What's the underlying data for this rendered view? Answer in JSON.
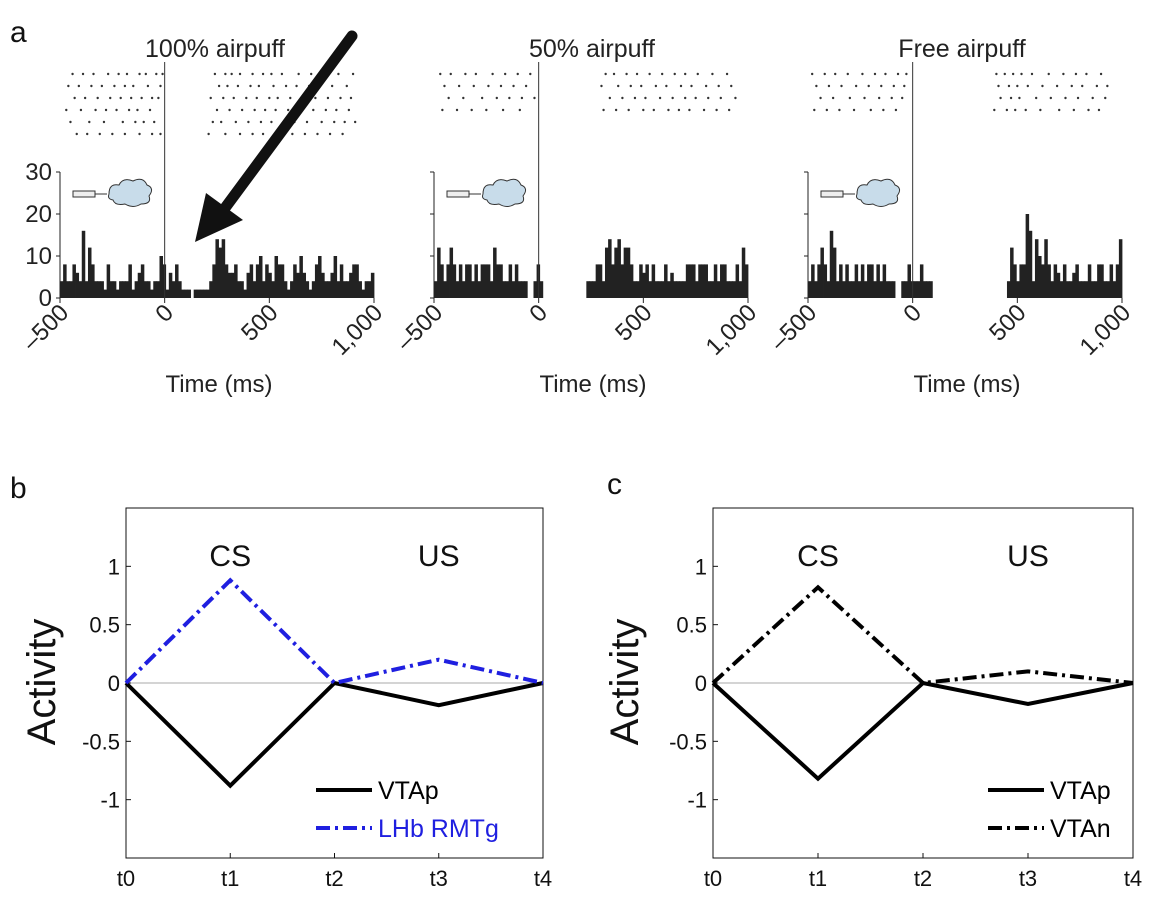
{
  "panel_labels": [
    "a",
    "b",
    "c"
  ],
  "panel_a": {
    "xlabel": "Time (ms)",
    "xticks": [
      "–500",
      "0",
      "500",
      "1,000"
    ],
    "xtick_values": [
      -500,
      0,
      500,
      1000
    ],
    "yticks": [
      "0",
      "10",
      "20",
      "30"
    ],
    "ytick_values": [
      0,
      10,
      20,
      30
    ],
    "xlim": [
      -500,
      1000
    ],
    "ylim": [
      0,
      30
    ],
    "icon": "airpuff-icon",
    "annotation_icon": "arrow-icon"
  },
  "chart_data": [
    {
      "type": "bar",
      "title": "100% airpuff",
      "bin_ms": 20,
      "x_start": -500,
      "values": [
        4,
        8,
        4,
        4,
        8,
        6,
        4,
        16,
        4,
        12,
        8,
        4,
        4,
        4,
        2,
        8,
        4,
        4,
        2,
        4,
        4,
        4,
        8,
        2,
        4,
        6,
        8,
        4,
        4,
        2,
        4,
        4,
        10,
        8,
        2,
        6,
        4,
        8,
        4,
        2,
        2,
        2,
        0,
        2,
        2,
        2,
        2,
        2,
        4,
        8,
        14,
        12,
        14,
        8,
        6,
        6,
        8,
        4,
        4,
        2,
        6,
        8,
        4,
        8,
        10,
        4,
        8,
        6,
        4,
        10,
        8,
        8,
        4,
        2,
        4,
        8,
        6,
        10,
        6,
        4,
        2,
        4,
        8,
        10,
        6,
        4,
        4,
        6,
        10,
        4,
        8,
        4,
        4,
        6,
        8,
        8,
        4,
        2,
        4,
        4,
        6
      ],
      "raster_rows": [
        [
          -440,
          -390,
          -340,
          -270,
          -220,
          -180,
          -120,
          -90,
          -40,
          -10,
          240,
          290,
          320,
          360,
          420,
          470,
          510,
          560,
          640,
          700,
          760,
          830,
          900
        ],
        [
          -460,
          -410,
          -350,
          -300,
          -240,
          -190,
          -150,
          -80,
          -20,
          260,
          300,
          350,
          410,
          450,
          520,
          580,
          630,
          690,
          740,
          800,
          870
        ],
        [
          -430,
          -380,
          -320,
          -260,
          -210,
          -160,
          -110,
          -60,
          -30,
          220,
          280,
          330,
          390,
          440,
          500,
          540,
          600,
          660,
          720,
          780,
          840,
          890
        ],
        [
          -470,
          -400,
          -330,
          -280,
          -230,
          -170,
          -130,
          -70,
          250,
          310,
          370,
          430,
          480,
          530,
          590,
          650,
          710,
          770,
          820,
          880
        ],
        [
          -450,
          -360,
          -290,
          -200,
          -140,
          -100,
          -50,
          230,
          270,
          340,
          400,
          460,
          510,
          570,
          620,
          680,
          750,
          810,
          860,
          910
        ],
        [
          -420,
          -370,
          -310,
          -250,
          -190,
          -120,
          -60,
          -20,
          210,
          290,
          360,
          420,
          470,
          550,
          610,
          670,
          730,
          790,
          850
        ]
      ]
    },
    {
      "type": "bar",
      "title": "50% airpuff",
      "bin_ms": 20,
      "x_start": -500,
      "values": [
        4,
        12,
        8,
        4,
        8,
        12,
        8,
        4,
        8,
        4,
        8,
        8,
        4,
        8,
        4,
        8,
        8,
        8,
        4,
        12,
        8,
        8,
        4,
        4,
        8,
        4,
        8,
        4,
        4,
        4,
        0,
        0,
        4,
        8,
        4,
        0,
        0,
        0,
        0,
        0,
        0,
        0,
        0,
        0,
        0,
        0,
        0,
        0,
        0,
        4,
        4,
        4,
        8,
        8,
        4,
        12,
        14,
        8,
        12,
        14,
        8,
        12,
        12,
        8,
        4,
        4,
        8,
        6,
        8,
        4,
        8,
        4,
        4,
        4,
        8,
        4,
        6,
        4,
        4,
        4,
        4,
        8,
        8,
        8,
        4,
        8,
        8,
        8,
        4,
        4,
        8,
        4,
        8,
        8,
        4,
        4,
        4,
        8,
        4,
        12,
        8
      ],
      "raster_rows": [
        [
          -470,
          -420,
          -350,
          -300,
          -220,
          -160,
          -100,
          -40,
          320,
          360,
          420,
          470,
          530,
          590,
          650,
          700,
          760,
          830,
          900
        ],
        [
          -450,
          -380,
          -310,
          -240,
          -180,
          -120,
          -60,
          300,
          380,
          440,
          490,
          560,
          610,
          680,
          730,
          800,
          860,
          920
        ],
        [
          -430,
          -360,
          -270,
          -200,
          -140,
          -80,
          -20,
          340,
          400,
          460,
          510,
          580,
          640,
          700,
          750,
          810,
          870,
          940
        ],
        [
          -460,
          -390,
          -320,
          -250,
          -170,
          -90,
          310,
          370,
          430,
          500,
          550,
          620,
          670,
          720,
          790,
          850,
          910
        ]
      ]
    },
    {
      "type": "bar",
      "title": "Free airpuff",
      "bin_ms": 20,
      "x_start": -500,
      "values": [
        4,
        8,
        4,
        8,
        12,
        8,
        4,
        16,
        12,
        4,
        8,
        4,
        8,
        4,
        4,
        8,
        4,
        8,
        4,
        8,
        8,
        4,
        8,
        4,
        8,
        4,
        4,
        4,
        0,
        0,
        4,
        4,
        8,
        4,
        4,
        4,
        8,
        4,
        4,
        4,
        0,
        0,
        0,
        0,
        0,
        0,
        0,
        0,
        0,
        0,
        0,
        0,
        0,
        0,
        0,
        0,
        0,
        0,
        0,
        0,
        0,
        0,
        0,
        0,
        4,
        12,
        8,
        4,
        8,
        8,
        20,
        16,
        4,
        14,
        10,
        8,
        14,
        8,
        4,
        8,
        6,
        4,
        8,
        4,
        4,
        6,
        8,
        4,
        4,
        4,
        8,
        4,
        4,
        8,
        8,
        4,
        4,
        8,
        4,
        8,
        14
      ],
      "raster_rows": [
        [
          -480,
          -420,
          -370,
          -310,
          -240,
          -180,
          -130,
          -70,
          -30,
          400,
          440,
          480,
          520,
          570,
          650,
          720,
          780,
          830,
          900
        ],
        [
          -460,
          -400,
          -340,
          -270,
          -210,
          -150,
          -90,
          -40,
          410,
          460,
          500,
          550,
          620,
          690,
          760,
          810,
          880,
          930
        ],
        [
          -440,
          -380,
          -300,
          -230,
          -160,
          -100,
          -50,
          420,
          470,
          510,
          590,
          660,
          730,
          790,
          860,
          920
        ],
        [
          -470,
          -410,
          -350,
          -280,
          -200,
          -140,
          -80,
          390,
          450,
          490,
          540,
          610,
          700,
          770,
          840,
          890
        ]
      ]
    },
    {
      "type": "line",
      "categories": [
        "t0",
        "t1",
        "t2",
        "t3",
        "t4"
      ],
      "ylim": [
        -1.5,
        1.5
      ],
      "yticks": [
        "1",
        "0.5",
        "0",
        "-0.5",
        "-1"
      ],
      "ytick_values": [
        1,
        0.5,
        0,
        -0.5,
        -1
      ],
      "ylabel": "Activity",
      "annotations": [
        "CS",
        "US"
      ],
      "annotation_x": [
        1,
        3
      ],
      "series": [
        {
          "name": "VTAp",
          "values": [
            0,
            -0.88,
            0,
            -0.19,
            0
          ],
          "color": "#000000",
          "style": "solid"
        },
        {
          "name": "LHb RMTg",
          "values": [
            0,
            0.88,
            0,
            0.2,
            0
          ],
          "color": "#1f1fe0",
          "style": "dashdot"
        }
      ]
    },
    {
      "type": "line",
      "categories": [
        "t0",
        "t1",
        "t2",
        "t3",
        "t4"
      ],
      "ylim": [
        -1.5,
        1.5
      ],
      "yticks": [
        "1",
        "0.5",
        "0",
        "-0.5",
        "-1"
      ],
      "ytick_values": [
        1,
        0.5,
        0,
        -0.5,
        -1
      ],
      "ylabel": "Activity",
      "annotations": [
        "CS",
        "US"
      ],
      "annotation_x": [
        1,
        3
      ],
      "series": [
        {
          "name": "VTAp",
          "values": [
            0,
            -0.82,
            0,
            -0.18,
            0
          ],
          "color": "#000000",
          "style": "solid"
        },
        {
          "name": "VTAn",
          "values": [
            0,
            0.82,
            0,
            0.1,
            0
          ],
          "color": "#000000",
          "style": "dashdot"
        }
      ]
    }
  ]
}
